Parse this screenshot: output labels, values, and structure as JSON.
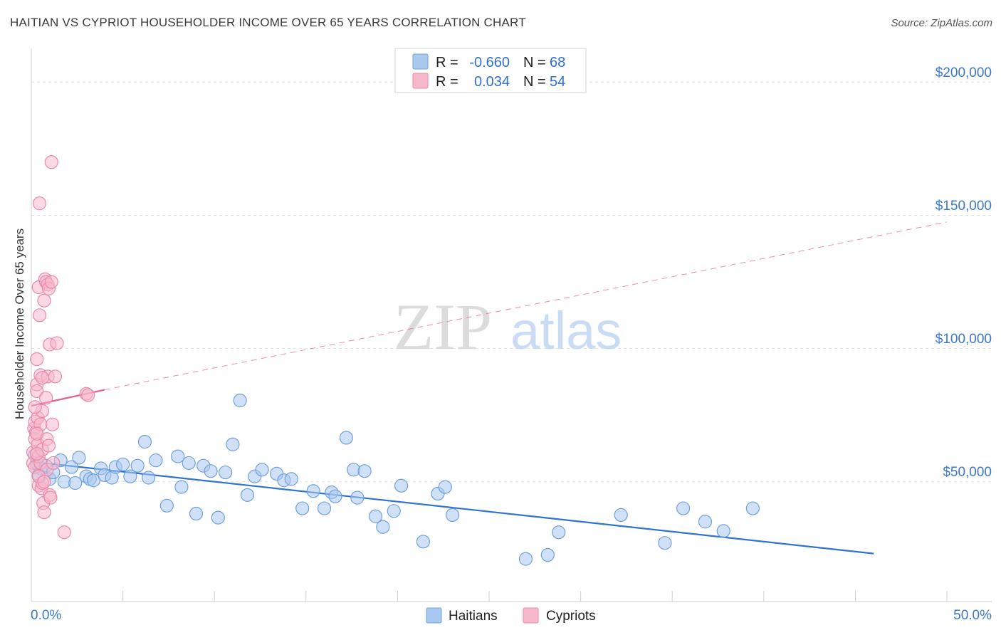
{
  "title": "HAITIAN VS CYPRIOT HOUSEHOLDER INCOME OVER 65 YEARS CORRELATION CHART",
  "source": "Source: ZipAtlas.com",
  "watermark": {
    "zip": "ZIP",
    "atlas": "atlas"
  },
  "legend_top": [
    {
      "r_label": "R =",
      "r_value": "-0.660",
      "n_label": "N =",
      "n_value": "68",
      "color": "#a9c9f0",
      "stroke": "#6fa0dc"
    },
    {
      "r_label": "R =",
      "r_value": "0.034",
      "n_label": "N =",
      "n_value": "54",
      "color": "#f7b8cc",
      "stroke": "#e88aa8"
    }
  ],
  "legend_bottom": [
    {
      "label": "Haitians",
      "color": "#a9c9f0",
      "stroke": "#6fa0dc"
    },
    {
      "label": "Cypriots",
      "color": "#f7b8cc",
      "stroke": "#e88aa8"
    }
  ],
  "chart_data": {
    "type": "scatter",
    "ylabel": "Householder Income Over 65 years",
    "xlim": [
      0,
      50
    ],
    "ylim": [
      5000,
      210000
    ],
    "x_tick_labels": [
      "0.0%",
      "50.0%"
    ],
    "y_ticks": [
      {
        "value": 50000,
        "label": "$50,000"
      },
      {
        "value": 100000,
        "label": "$100,000"
      },
      {
        "value": 150000,
        "label": "$150,000"
      },
      {
        "value": 200000,
        "label": "$200,000"
      }
    ],
    "grid": true,
    "series": [
      {
        "name": "Haitians",
        "color": "#a9c9f0",
        "stroke": "#6fa0dc",
        "trend": {
          "x": [
            0,
            46.0
          ],
          "y": [
            57500,
            23000
          ],
          "color": "#2f73d0",
          "dashed_extension": false
        },
        "points": [
          [
            0.2,
            60000
          ],
          [
            0.3,
            57000
          ],
          [
            0.5,
            55000
          ],
          [
            0.8,
            56000
          ],
          [
            1.0,
            51000
          ],
          [
            1.2,
            53500
          ],
          [
            1.6,
            58000
          ],
          [
            1.8,
            50000
          ],
          [
            2.2,
            55500
          ],
          [
            2.4,
            49500
          ],
          [
            2.6,
            59000
          ],
          [
            3.0,
            52000
          ],
          [
            3.2,
            51000
          ],
          [
            3.4,
            50500
          ],
          [
            3.8,
            55000
          ],
          [
            4.0,
            52500
          ],
          [
            4.4,
            51500
          ],
          [
            4.6,
            55500
          ],
          [
            5.0,
            56500
          ],
          [
            5.4,
            52000
          ],
          [
            5.8,
            56000
          ],
          [
            6.2,
            65000
          ],
          [
            6.4,
            51500
          ],
          [
            6.8,
            58000
          ],
          [
            7.4,
            41000
          ],
          [
            8.0,
            59500
          ],
          [
            8.2,
            48000
          ],
          [
            8.6,
            57000
          ],
          [
            9.0,
            38000
          ],
          [
            9.4,
            56000
          ],
          [
            9.8,
            54000
          ],
          [
            10.2,
            36500
          ],
          [
            10.6,
            53500
          ],
          [
            11.0,
            64000
          ],
          [
            11.4,
            80500
          ],
          [
            11.8,
            45000
          ],
          [
            12.2,
            52000
          ],
          [
            12.6,
            54500
          ],
          [
            13.4,
            53000
          ],
          [
            13.8,
            50500
          ],
          [
            14.2,
            51000
          ],
          [
            14.8,
            40000
          ],
          [
            15.4,
            46500
          ],
          [
            16.0,
            40000
          ],
          [
            16.4,
            46000
          ],
          [
            16.6,
            44500
          ],
          [
            17.2,
            66500
          ],
          [
            17.6,
            54500
          ],
          [
            17.8,
            44000
          ],
          [
            18.2,
            54000
          ],
          [
            18.8,
            37000
          ],
          [
            19.2,
            33000
          ],
          [
            19.8,
            39000
          ],
          [
            20.2,
            48500
          ],
          [
            21.4,
            27500
          ],
          [
            22.2,
            45500
          ],
          [
            22.6,
            48000
          ],
          [
            23.0,
            37500
          ],
          [
            27.0,
            21000
          ],
          [
            28.2,
            22500
          ],
          [
            28.8,
            31000
          ],
          [
            32.2,
            37500
          ],
          [
            34.6,
            27000
          ],
          [
            35.6,
            40000
          ],
          [
            36.8,
            35000
          ],
          [
            37.8,
            31500
          ],
          [
            39.4,
            40000
          ],
          [
            0.4,
            52500
          ]
        ]
      },
      {
        "name": "Cypriots",
        "color": "#f7b8cc",
        "stroke": "#e88aa8",
        "trend": {
          "x": [
            0,
            4.0
          ],
          "y": [
            78500,
            84500
          ],
          "color": "#e0608a",
          "dashed_to": [
            50,
            147500
          ]
        },
        "points": [
          [
            0.1,
            61000
          ],
          [
            0.1,
            57000
          ],
          [
            0.15,
            70000
          ],
          [
            0.2,
            72500
          ],
          [
            0.2,
            66000
          ],
          [
            0.2,
            55500
          ],
          [
            0.25,
            68500
          ],
          [
            0.3,
            96000
          ],
          [
            0.3,
            86500
          ],
          [
            0.3,
            84000
          ],
          [
            0.35,
            74000
          ],
          [
            0.35,
            64000
          ],
          [
            0.4,
            59500
          ],
          [
            0.4,
            48500
          ],
          [
            0.4,
            123000
          ],
          [
            0.45,
            112500
          ],
          [
            0.45,
            154500
          ],
          [
            0.5,
            90000
          ],
          [
            0.5,
            71500
          ],
          [
            0.5,
            57000
          ],
          [
            0.55,
            47500
          ],
          [
            0.6,
            76500
          ],
          [
            0.6,
            62000
          ],
          [
            0.6,
            49500
          ],
          [
            0.65,
            42000
          ],
          [
            0.7,
            118000
          ],
          [
            0.7,
            38500
          ],
          [
            0.75,
            126000
          ],
          [
            0.8,
            125000
          ],
          [
            0.8,
            81500
          ],
          [
            0.85,
            66000
          ],
          [
            0.85,
            54500
          ],
          [
            0.9,
            124000
          ],
          [
            0.9,
            89500
          ],
          [
            0.95,
            122500
          ],
          [
            0.95,
            63500
          ],
          [
            1.0,
            101500
          ],
          [
            1.0,
            45000
          ],
          [
            1.05,
            44000
          ],
          [
            1.1,
            125000
          ],
          [
            1.1,
            170000
          ],
          [
            1.15,
            71500
          ],
          [
            1.2,
            57000
          ],
          [
            1.3,
            89500
          ],
          [
            1.4,
            102000
          ],
          [
            1.8,
            31000
          ],
          [
            3.0,
            83000
          ],
          [
            3.1,
            82500
          ],
          [
            0.2,
            78000
          ],
          [
            0.3,
            68000
          ],
          [
            0.4,
            52000
          ],
          [
            0.6,
            89000
          ],
          [
            0.7,
            50000
          ],
          [
            0.3,
            60500
          ]
        ]
      }
    ]
  }
}
